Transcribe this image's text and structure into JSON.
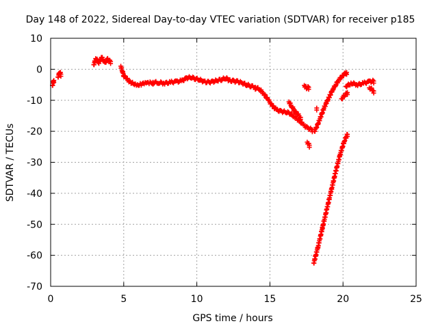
{
  "chart_data": {
    "type": "scatter",
    "title": "Day 148 of 2022, Sidereal Day-to-day VTEC variation (SDTVAR) for receiver p185",
    "xlabel": "GPS time / hours",
    "ylabel": "SDTVAR / TECUs",
    "xlim": [
      0,
      25
    ],
    "ylim": [
      -70,
      10
    ],
    "xticks": [
      0,
      5,
      10,
      15,
      20,
      25
    ],
    "yticks": [
      10,
      0,
      -10,
      -20,
      -30,
      -40,
      -50,
      -60,
      -70
    ],
    "grid": true,
    "marker": "plus",
    "color": "#ff0000",
    "series": [
      {
        "name": "SDTVAR",
        "segments": [
          {
            "x": [
              0.12,
              0.22
            ],
            "y": [
              -5.2,
              -3.6
            ]
          },
          {
            "x": [
              0.5,
              0.62,
              0.7
            ],
            "y": [
              -2.5,
              -0.8,
              -1.6
            ]
          },
          {
            "x": [
              2.95,
              3.1,
              3.3,
              3.5,
              3.7,
              3.9,
              4.1
            ],
            "y": [
              1.5,
              3.5,
              2.2,
              3.8,
              2.0,
              3.2,
              2.5
            ]
          },
          {
            "x": [
              4.8,
              4.9,
              5.0,
              5.2,
              5.4,
              5.6,
              5.8,
              6.0,
              6.2,
              6.4,
              6.6,
              6.8,
              7.0
            ],
            "y": [
              1.0,
              -0.5,
              -2.0,
              -3.0,
              -4.0,
              -4.5,
              -4.8,
              -5.0,
              -4.8,
              -4.6,
              -4.5,
              -4.4,
              -4.2
            ]
          },
          {
            "x": [
              7.0,
              7.4,
              7.8,
              8.2,
              8.6,
              9.0,
              9.3,
              9.6,
              9.9,
              10.2,
              10.5,
              10.8,
              11.1,
              11.4,
              11.7,
              12.0,
              12.2,
              12.5,
              12.8,
              13.1,
              13.4,
              13.7,
              14.0
            ],
            "y": [
              -4.2,
              -4.3,
              -4.5,
              -4.2,
              -4.0,
              -3.7,
              -2.8,
              -2.6,
              -3.0,
              -3.4,
              -4.0,
              -4.2,
              -4.0,
              -3.6,
              -3.3,
              -2.8,
              -3.6,
              -3.8,
              -4.0,
              -4.4,
              -5.0,
              -5.4,
              -5.8
            ]
          },
          {
            "x": [
              14.0,
              14.3,
              14.6,
              14.9,
              15.2,
              15.5,
              15.8,
              16.1,
              16.4,
              16.7,
              17.0,
              17.3,
              17.6,
              17.9
            ],
            "y": [
              -5.8,
              -6.5,
              -8.0,
              -10.0,
              -12.0,
              -13.2,
              -13.6,
              -13.8,
              -14.2,
              -15.5,
              -16.5,
              -18.0,
              -19.0,
              -19.5
            ]
          },
          {
            "x": [
              16.3,
              16.5,
              16.7,
              16.9,
              17.1
            ],
            "y": [
              -10.5,
              -12.0,
              -13.5,
              -14.5,
              -15.5
            ]
          },
          {
            "x": [
              17.35,
              17.5,
              17.65
            ],
            "y": [
              -5.2,
              -6.0,
              -5.8
            ]
          },
          {
            "x": [
              17.55,
              17.7
            ],
            "y": [
              -23.5,
              -24.5
            ]
          },
          {
            "x": [
              18.05,
              18.3,
              18.5,
              18.7,
              18.9,
              19.1,
              19.3,
              19.5,
              19.7,
              19.9,
              20.1,
              20.25
            ],
            "y": [
              -20.0,
              -17.5,
              -15.0,
              -12.5,
              -10.5,
              -8.5,
              -6.5,
              -5.0,
              -3.5,
              -2.5,
              -1.5,
              -1.0
            ]
          },
          {
            "x": [
              18.2
            ],
            "y": [
              -12.5
            ]
          },
          {
            "x": [
              18.0,
              18.3,
              18.6,
              18.9,
              19.2,
              19.5,
              19.8,
              20.1,
              20.3
            ],
            "y": [
              -62.5,
              -57.0,
              -51.0,
              -45.0,
              -39.0,
              -33.0,
              -27.5,
              -23.0,
              -21.0
            ]
          },
          {
            "x": [
              19.9,
              20.1,
              20.3
            ],
            "y": [
              -9.5,
              -8.5,
              -7.5
            ]
          },
          {
            "x": [
              20.2,
              20.6,
              21.0,
              21.4,
              21.8,
              22.1
            ],
            "y": [
              -5.5,
              -4.5,
              -5.0,
              -4.5,
              -4.0,
              -3.8
            ]
          },
          {
            "x": [
              21.8,
              22.0,
              22.1
            ],
            "y": [
              -6.0,
              -6.5,
              -7.0
            ]
          }
        ]
      }
    ]
  }
}
